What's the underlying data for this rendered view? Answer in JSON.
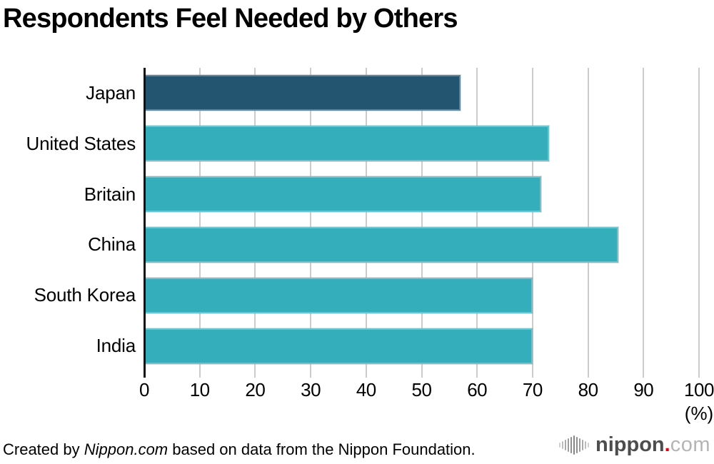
{
  "title": "Respondents Feel Needed by Others",
  "chart_data": {
    "type": "bar",
    "orientation": "horizontal",
    "title": "Respondents Feel Needed by Others",
    "categories": [
      "Japan",
      "United States",
      "Britain",
      "China",
      "South Korea",
      "India"
    ],
    "values": [
      57,
      73,
      71.5,
      85.5,
      70,
      70
    ],
    "highlight_category": "Japan",
    "xlabel": "(%)",
    "xlim": [
      0,
      100
    ],
    "xticks": [
      0,
      10,
      20,
      30,
      40,
      50,
      60,
      70,
      80,
      90,
      100
    ],
    "grid": true,
    "legend": "none",
    "bar_color": "#35AEBC",
    "highlight_color": "#235571"
  },
  "colors": {
    "bar_teal": "#35AEBC",
    "bar_dark_blue": "#235571",
    "gridline": "#cccccc",
    "axis": "#111111",
    "text": "#000000",
    "logo_dark_gray": "#4d4d4d",
    "logo_light_gray": "#b5b5b5",
    "logo_icon_gray": "#9a9a9a",
    "logo_dot_red": "#e60012"
  },
  "footer": {
    "credit_prefix": "Created by ",
    "credit_source": "Nippon.com",
    "credit_suffix": " based on data from the Nippon Foundation.",
    "logo": {
      "icon": "soundwave-bars-icon",
      "name": "nippon",
      "dot": ".",
      "tld": "com"
    }
  }
}
